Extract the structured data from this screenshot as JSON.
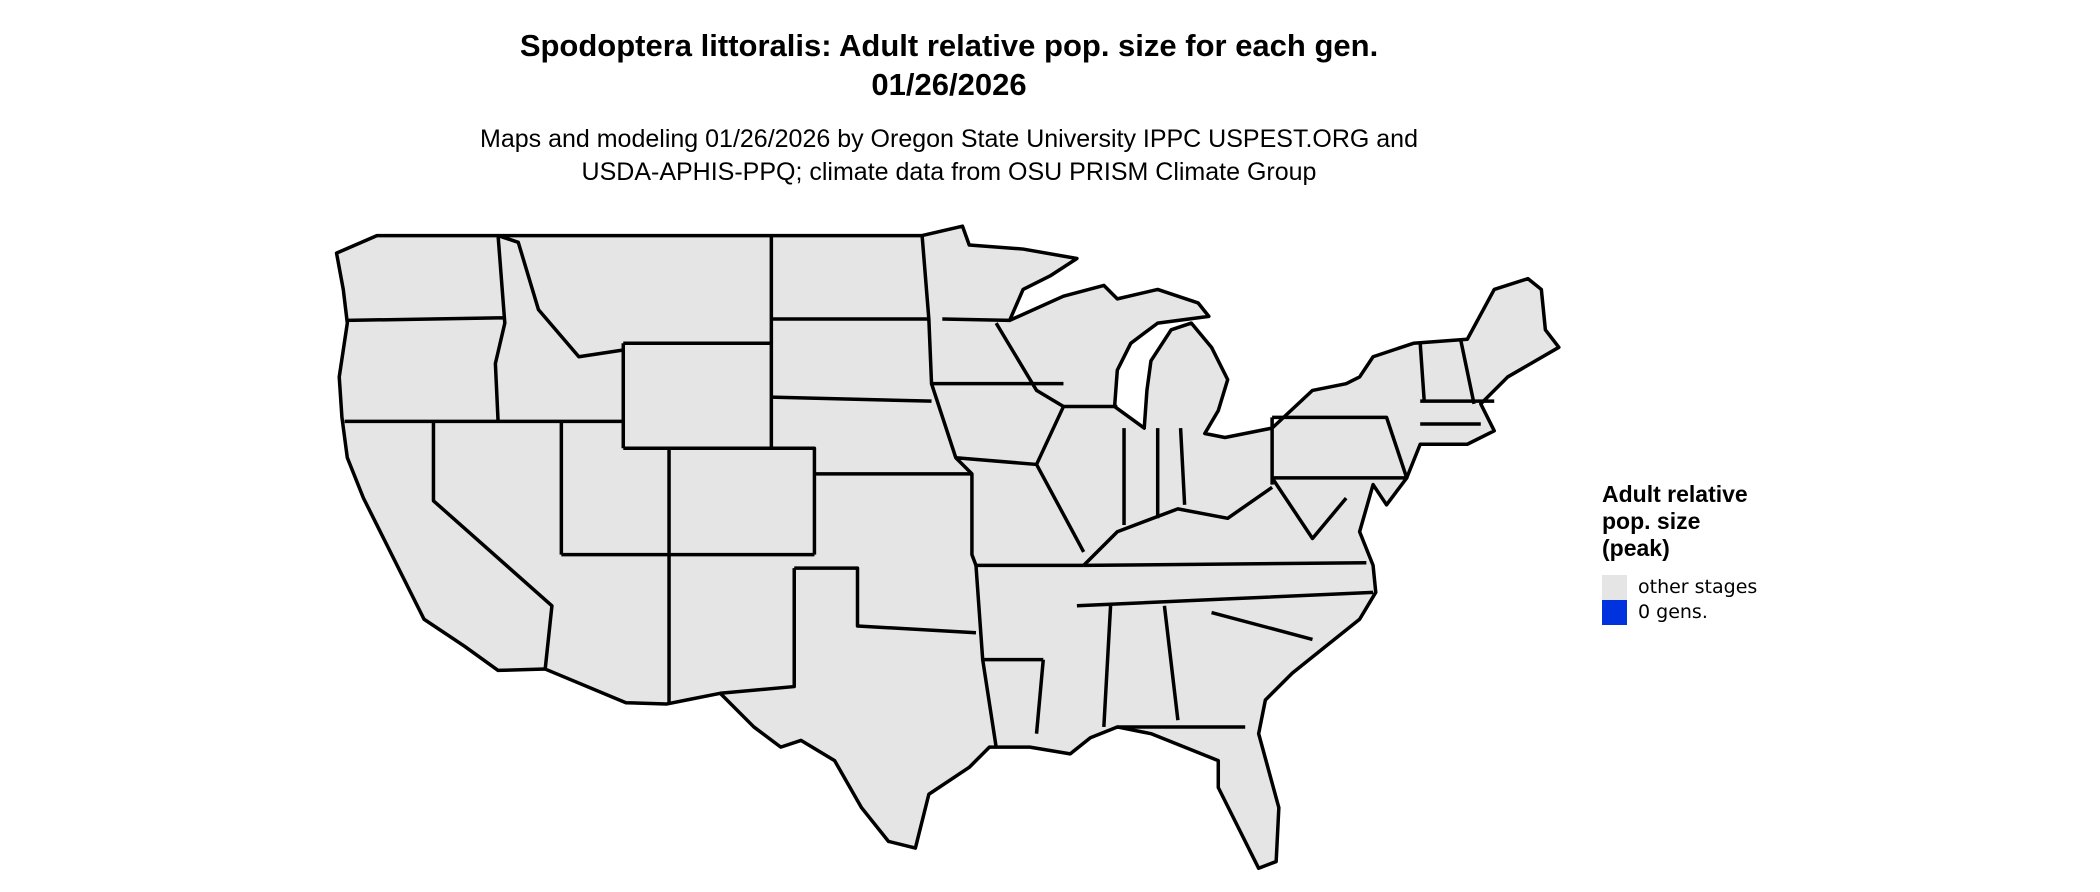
{
  "title": {
    "line1": "Spodoptera littoralis: Adult relative pop. size for each gen.",
    "line2": "01/26/2026"
  },
  "subtitle": {
    "line1": "Maps and modeling 01/26/2026 by Oregon State University IPPC USPEST.ORG and",
    "line2": "USDA-APHIS-PPQ; climate data from OSU PRISM Climate Group"
  },
  "map": {
    "region": "contiguous United States",
    "fill_color": "#e5e5e5",
    "border_color": "#000000"
  },
  "legend": {
    "title_lines": [
      "Adult relative",
      "pop. size",
      "(peak)"
    ],
    "items": [
      {
        "label": "other stages",
        "color": "#e5e5e5"
      },
      {
        "label": "0 gens.",
        "color": "#0033dd"
      }
    ]
  }
}
